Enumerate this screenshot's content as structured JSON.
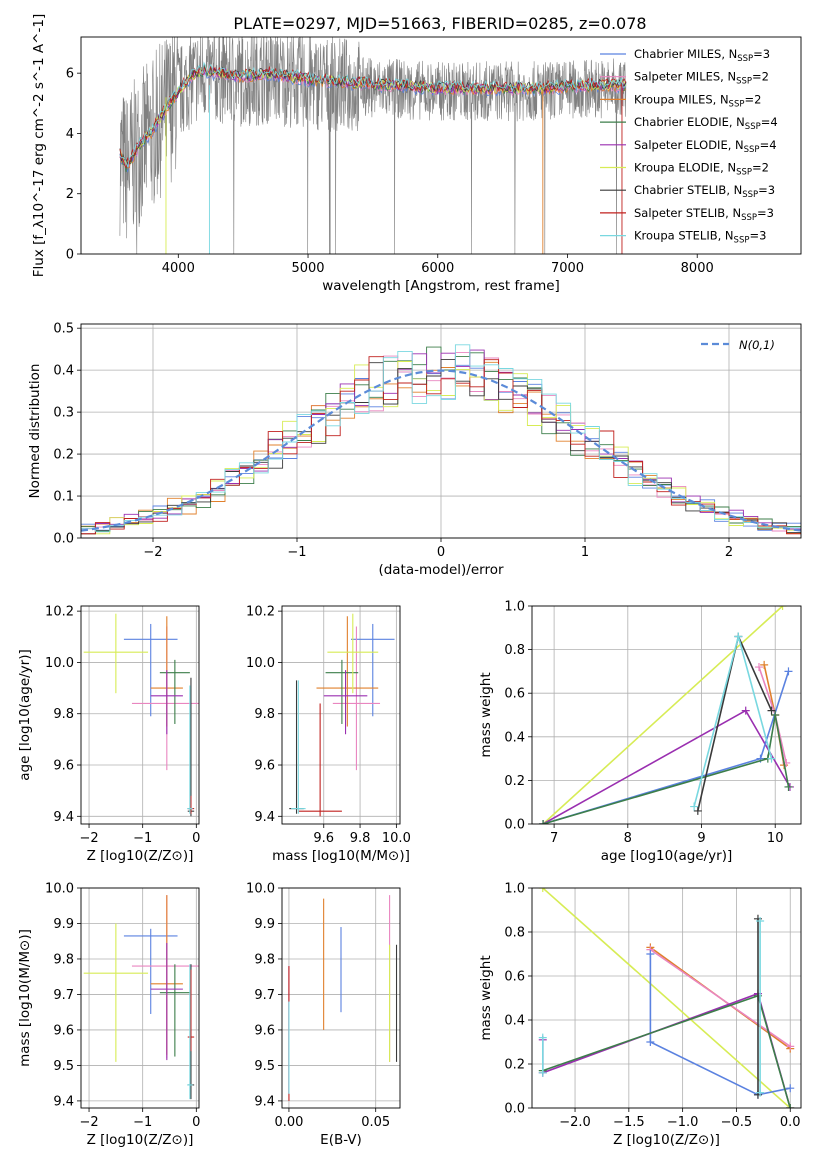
{
  "figure": {
    "title": "PLATE=0297, MJD=51663, FIBERID=0285, z=0.078"
  },
  "colors": {
    "axes": "#000000",
    "grid": "#b0b0b0",
    "spectrum": "#808080",
    "normal_curve": "#5b8bd8"
  },
  "legend_models": [
    {
      "label": "Chabrier MILES, N",
      "sub": "SSP",
      "suffix": "=3",
      "color": "#5b82e0"
    },
    {
      "label": "Salpeter MILES, N",
      "sub": "SSP",
      "suffix": "=2",
      "color": "#e986c0"
    },
    {
      "label": "Kroupa MILES, N",
      "sub": "SSP",
      "suffix": "=2",
      "color": "#e0802c"
    },
    {
      "label": "Chabrier ELODIE, N",
      "sub": "SSP",
      "suffix": "=4",
      "color": "#3c7e4a"
    },
    {
      "label": "Salpeter ELODIE, N",
      "sub": "SSP",
      "suffix": "=4",
      "color": "#9a2fb0"
    },
    {
      "label": "Kroupa ELODIE, N",
      "sub": "SSP",
      "suffix": "=2",
      "color": "#d7ec55"
    },
    {
      "label": "Chabrier STELIB, N",
      "sub": "SSP",
      "suffix": "=3",
      "color": "#3a3a3a"
    },
    {
      "label": "Salpeter STELIB, N",
      "sub": "SSP",
      "suffix": "=3",
      "color": "#c0201e"
    },
    {
      "label": "Kroupa STELIB, N",
      "sub": "SSP",
      "suffix": "=3",
      "color": "#79d8e0"
    }
  ],
  "chart_data": [
    {
      "id": "spectrum",
      "type": "line",
      "xlabel": "wavelength [Angstrom, rest frame]",
      "ylabel": "Flux [f_λ10^-17 erg cm^-2 s^-1 A^-1]",
      "xlim": [
        3250,
        8800
      ],
      "ylim": [
        0,
        7.2
      ],
      "xticks": [
        4000,
        5000,
        6000,
        7000,
        8000
      ],
      "yticks": [
        0,
        2,
        4,
        6
      ],
      "observed": {
        "x": [
          3550,
          3600,
          3700,
          3800,
          3900,
          4000,
          4100,
          4200,
          4300,
          4500,
          4700,
          5000,
          5300,
          5600,
          6000,
          6400,
          6800,
          7200,
          7450
        ],
        "y": [
          3.2,
          2.8,
          3.5,
          4.0,
          4.7,
          5.3,
          5.8,
          6.0,
          5.9,
          5.8,
          5.9,
          5.7,
          5.6,
          5.5,
          5.4,
          5.4,
          5.4,
          5.5,
          5.5
        ]
      },
      "models": {
        "x": [
          3550,
          3600,
          3700,
          3800,
          3900,
          4000,
          4100,
          4200,
          4300,
          4500,
          4700,
          5000,
          5300,
          5600,
          6000,
          6400,
          6800,
          7200,
          7450
        ],
        "y": [
          3.3,
          2.9,
          3.6,
          4.1,
          4.8,
          5.4,
          5.9,
          6.1,
          6.0,
          5.9,
          6.0,
          5.8,
          5.7,
          5.6,
          5.5,
          5.5,
          5.5,
          5.6,
          5.6
        ]
      }
    },
    {
      "id": "residuals",
      "type": "line",
      "xlabel": "(data-model)/error",
      "ylabel": "Normed distribution",
      "xlim": [
        -2.5,
        2.5
      ],
      "ylim": [
        0,
        0.51
      ],
      "xticks": [
        -2,
        -1,
        0,
        1,
        2
      ],
      "xtick_labels": [
        "−2",
        "−1",
        "0",
        "1",
        "2"
      ],
      "yticks": [
        0,
        0.1,
        0.2,
        0.3,
        0.4,
        0.5
      ],
      "ytick_labels": [
        "0.0",
        "0.1",
        "0.2",
        "0.3",
        "0.4",
        "0.5"
      ],
      "legend": {
        "label": "N(0,1)",
        "position": "top-right"
      },
      "normal": {
        "mean": 0,
        "sigma": 1
      }
    },
    {
      "id": "age_vs_z",
      "type": "scatter",
      "xlabel": "Z [log10(Z/Z⊙)]",
      "ylabel": "age [log10(age/yr)]",
      "xlim": [
        -2.15,
        0.05
      ],
      "ylim": [
        9.37,
        10.22
      ],
      "xticks": [
        -2,
        -1,
        0
      ],
      "xtick_labels": [
        "−2",
        "−1",
        "0"
      ],
      "yticks": [
        9.4,
        9.6,
        9.8,
        10.0,
        10.2
      ],
      "ytick_labels": [
        "9.4",
        "9.6",
        "9.8",
        "10.0",
        "10.2"
      ],
      "points": [
        {
          "x": -0.85,
          "y": 10.09,
          "xerr": 0.5,
          "yerr": [
            0.3,
            0.06
          ],
          "model": 0
        },
        {
          "x": -0.55,
          "y": 9.84,
          "xerr": 0.65,
          "yerr": [
            0.26,
            0.3
          ],
          "model": 1
        },
        {
          "x": -0.55,
          "y": 9.9,
          "xerr": 0.3,
          "yerr": [
            0.15,
            0.28
          ],
          "model": 2
        },
        {
          "x": -0.4,
          "y": 9.96,
          "xerr": 0.28,
          "yerr": [
            0.2,
            0.05
          ],
          "model": 3
        },
        {
          "x": -0.55,
          "y": 9.87,
          "xerr": 0.3,
          "yerr": [
            0.15,
            0.1
          ],
          "model": 4
        },
        {
          "x": -1.5,
          "y": 10.04,
          "xerr": 0.6,
          "yerr": [
            0.16,
            0.15
          ],
          "model": 5
        },
        {
          "x": -0.1,
          "y": 9.42,
          "xerr": 0.06,
          "yerr": [
            0.02,
            0.52
          ],
          "model": 6
        },
        {
          "x": -0.1,
          "y": 9.43,
          "xerr": 0.06,
          "yerr": [
            0.02,
            0.05
          ],
          "model": 7
        },
        {
          "x": -0.12,
          "y": 9.43,
          "xerr": 0.05,
          "yerr": [
            0.02,
            0.48
          ],
          "model": 8
        }
      ]
    },
    {
      "id": "age_vs_mass",
      "type": "scatter",
      "xlabel": "mass [log10(M/M⊙)]",
      "ylabel": "",
      "xlim": [
        9.37,
        10.02
      ],
      "ylim": [
        9.37,
        10.22
      ],
      "xticks": [
        9.6,
        9.8,
        10.0
      ],
      "xtick_labels": [
        "9.6",
        "9.8",
        "10.0"
      ],
      "yticks": [
        9.4,
        9.6,
        9.8,
        10.0,
        10.2
      ],
      "ytick_labels": [
        "9.4",
        "9.6",
        "9.8",
        "10.0",
        "10.2"
      ],
      "points": [
        {
          "x": 9.87,
          "y": 10.09,
          "xerr": 0.12,
          "yerr": [
            0.3,
            0.06
          ],
          "model": 0
        },
        {
          "x": 9.78,
          "y": 9.84,
          "xerr": 0.13,
          "yerr": [
            0.26,
            0.3
          ],
          "model": 1
        },
        {
          "x": 9.73,
          "y": 9.9,
          "xerr": 0.17,
          "yerr": [
            0.15,
            0.28
          ],
          "model": 2
        },
        {
          "x": 9.7,
          "y": 9.96,
          "xerr": 0.09,
          "yerr": [
            0.2,
            0.05
          ],
          "model": 3
        },
        {
          "x": 9.72,
          "y": 9.87,
          "xerr": 0.12,
          "yerr": [
            0.15,
            0.1
          ],
          "model": 4
        },
        {
          "x": 9.76,
          "y": 10.04,
          "xerr": 0.14,
          "yerr": [
            0.16,
            0.15
          ],
          "model": 5
        },
        {
          "x": 9.45,
          "y": 9.43,
          "xerr": 0.04,
          "yerr": [
            0.02,
            0.5
          ],
          "model": 6
        },
        {
          "x": 9.58,
          "y": 9.42,
          "xerr": 0.12,
          "yerr": [
            0.02,
            0.42
          ],
          "model": 7
        },
        {
          "x": 9.46,
          "y": 9.43,
          "xerr": 0.04,
          "yerr": [
            0.02,
            0.5
          ],
          "model": 8
        }
      ]
    },
    {
      "id": "weight_vs_age",
      "type": "line",
      "xlabel": "age [log10(age/yr)]",
      "ylabel": "mass weight",
      "xlim": [
        6.7,
        10.35
      ],
      "ylim": [
        0,
        1.0
      ],
      "xticks": [
        7,
        8,
        9,
        10
      ],
      "yticks": [
        0,
        0.2,
        0.4,
        0.6,
        0.8,
        1.0
      ],
      "ytick_labels": [
        "0.0",
        "0.2",
        "0.4",
        "0.6",
        "0.8",
        "1.0"
      ],
      "series": [
        {
          "model": 5,
          "x": [
            6.85,
            10.1
          ],
          "y": [
            0.0,
            1.0
          ]
        },
        {
          "model": 4,
          "x": [
            6.85,
            9.6,
            10.2
          ],
          "y": [
            0.0,
            0.52,
            0.17
          ]
        },
        {
          "model": 2,
          "x": [
            9.85,
            10.0,
            10.12
          ],
          "y": [
            0.73,
            0.5,
            0.27
          ]
        },
        {
          "model": 1,
          "x": [
            9.78,
            10.0,
            10.15
          ],
          "y": [
            0.72,
            0.5,
            0.28
          ]
        },
        {
          "model": 0,
          "x": [
            6.85,
            9.8,
            10.18
          ],
          "y": [
            0.0,
            0.3,
            0.7
          ]
        },
        {
          "model": 3,
          "x": [
            6.85,
            9.9,
            10.0,
            10.18
          ],
          "y": [
            0.0,
            0.3,
            0.5,
            0.17
          ]
        },
        {
          "model": 6,
          "x": [
            8.95,
            9.5,
            9.95
          ],
          "y": [
            0.06,
            0.86,
            0.52
          ]
        },
        {
          "model": 8,
          "x": [
            8.9,
            9.5,
            9.95
          ],
          "y": [
            0.08,
            0.86,
            0.3
          ]
        }
      ]
    },
    {
      "id": "mass_vs_z",
      "type": "scatter",
      "xlabel": "Z [log10(Z/Z⊙)]",
      "ylabel": "mass [log10(M/M⊙)]",
      "xlim": [
        -2.15,
        0.05
      ],
      "ylim": [
        9.38,
        10.0
      ],
      "xticks": [
        -2,
        -1,
        0
      ],
      "xtick_labels": [
        "−2",
        "−1",
        "0"
      ],
      "yticks": [
        9.4,
        9.5,
        9.6,
        9.7,
        9.8,
        9.9,
        10.0
      ],
      "ytick_labels": [
        "9.4",
        "9.5",
        "9.6",
        "9.7",
        "9.8",
        "9.9",
        "10.0"
      ],
      "points": [
        {
          "x": -0.85,
          "y": 9.865,
          "xerr": 0.5,
          "yerr": [
            0.22,
            0.02
          ],
          "model": 0
        },
        {
          "x": -0.55,
          "y": 9.78,
          "xerr": 0.65,
          "yerr": [
            0.26,
            0.2
          ],
          "model": 1
        },
        {
          "x": -0.55,
          "y": 9.73,
          "xerr": 0.3,
          "yerr": [
            0.2,
            0.25
          ],
          "model": 2
        },
        {
          "x": -0.4,
          "y": 9.705,
          "xerr": 0.28,
          "yerr": [
            0.18,
            0.08
          ],
          "model": 3
        },
        {
          "x": -0.55,
          "y": 9.715,
          "xerr": 0.3,
          "yerr": [
            0.2,
            0.13
          ],
          "model": 4
        },
        {
          "x": -1.5,
          "y": 9.76,
          "xerr": 0.6,
          "yerr": [
            0.25,
            0.14
          ],
          "model": 5
        },
        {
          "x": -0.1,
          "y": 9.445,
          "xerr": 0.06,
          "yerr": [
            0.04,
            0.34
          ],
          "model": 6
        },
        {
          "x": -0.1,
          "y": 9.58,
          "xerr": 0.06,
          "yerr": [
            0.04,
            0.19
          ],
          "model": 7
        },
        {
          "x": -0.12,
          "y": 9.445,
          "xerr": 0.05,
          "yerr": [
            0.04,
            0.34
          ],
          "model": 8
        }
      ]
    },
    {
      "id": "mass_vs_ebv",
      "type": "scatter",
      "xlabel": "E(B-V)",
      "ylabel": "",
      "xlim": [
        -0.004,
        0.064
      ],
      "ylim": [
        9.38,
        10.0
      ],
      "xticks": [
        0,
        0.05
      ],
      "xtick_labels": [
        "0.00",
        "0.05"
      ],
      "yticks": [
        9.4,
        9.5,
        9.6,
        9.7,
        9.8,
        9.9,
        10.0
      ],
      "ytick_labels": [
        "9.4",
        "9.5",
        "9.6",
        "9.7",
        "9.8",
        "9.9",
        "10.0"
      ],
      "points": [
        {
          "x": 0.03,
          "y": 9.77,
          "xerr": 0,
          "yerr": [
            0.12,
            0.12
          ],
          "model": 0
        },
        {
          "x": 0.058,
          "y": 9.82,
          "xerr": 0,
          "yerr": [
            0.31,
            0.16
          ],
          "model": 1
        },
        {
          "x": 0.02,
          "y": 9.78,
          "xerr": 0,
          "yerr": [
            0.18,
            0.19
          ],
          "model": 2
        },
        {
          "x": 0.0,
          "y": 9.62,
          "xerr": 0,
          "yerr": [
            0.2,
            0.16
          ],
          "model": 4
        },
        {
          "x": 0.058,
          "y": 9.67,
          "xerr": 0,
          "yerr": [
            0.16,
            0.17
          ],
          "model": 5
        },
        {
          "x": 0.062,
          "y": 9.67,
          "xerr": 0,
          "yerr": [
            0.16,
            0.17
          ],
          "model": 6
        },
        {
          "x": 0.0,
          "y": 9.6,
          "xerr": 0,
          "yerr": [
            0.2,
            0.18
          ],
          "model": 7
        },
        {
          "x": 0.0,
          "y": 9.55,
          "xerr": 0,
          "yerr": [
            0.13,
            0.13
          ],
          "model": 8
        }
      ]
    },
    {
      "id": "weight_vs_z",
      "type": "line",
      "xlabel": "Z [log10(Z/Z⊙)]",
      "ylabel": "mass weight",
      "xlim": [
        -2.4,
        0.1
      ],
      "ylim": [
        0,
        1.0
      ],
      "xticks": [
        -2.0,
        -1.5,
        -1.0,
        -0.5,
        0.0
      ],
      "xtick_labels": [
        "−2.0",
        "−1.5",
        "−1.0",
        "−0.5",
        "0.0"
      ],
      "yticks": [
        0,
        0.2,
        0.4,
        0.6,
        0.8,
        1.0
      ],
      "ytick_labels": [
        "0.0",
        "0.2",
        "0.4",
        "0.6",
        "0.8",
        "1.0"
      ],
      "series": [
        {
          "model": 5,
          "x": [
            -2.3,
            0.0
          ],
          "y": [
            1.0,
            0.0
          ]
        },
        {
          "model": 2,
          "x": [
            -1.3,
            0.0
          ],
          "y": [
            0.73,
            0.27
          ]
        },
        {
          "model": 1,
          "x": [
            -1.3,
            0.0
          ],
          "y": [
            0.72,
            0.28
          ]
        },
        {
          "model": 0,
          "x": [
            -1.3,
            -1.3,
            -0.3,
            0.0
          ],
          "y": [
            0.7,
            0.3,
            0.06,
            0.09
          ]
        },
        {
          "model": 4,
          "x": [
            -2.3,
            -2.3,
            -0.3,
            0.0
          ],
          "y": [
            0.31,
            0.16,
            0.52,
            0.0
          ]
        },
        {
          "model": 3,
          "x": [
            -2.3,
            -0.3,
            0.0
          ],
          "y": [
            0.17,
            0.51,
            0.0
          ]
        },
        {
          "model": 8,
          "x": [
            -2.3,
            -2.3
          ],
          "y": [
            0.32,
            0.16
          ]
        },
        {
          "model": 6,
          "x": [
            -0.3,
            -0.3
          ],
          "y": [
            0.86,
            0.06
          ]
        },
        {
          "model": 8,
          "x": [
            -0.28,
            -0.28
          ],
          "y": [
            0.85,
            0.07
          ]
        }
      ]
    }
  ]
}
